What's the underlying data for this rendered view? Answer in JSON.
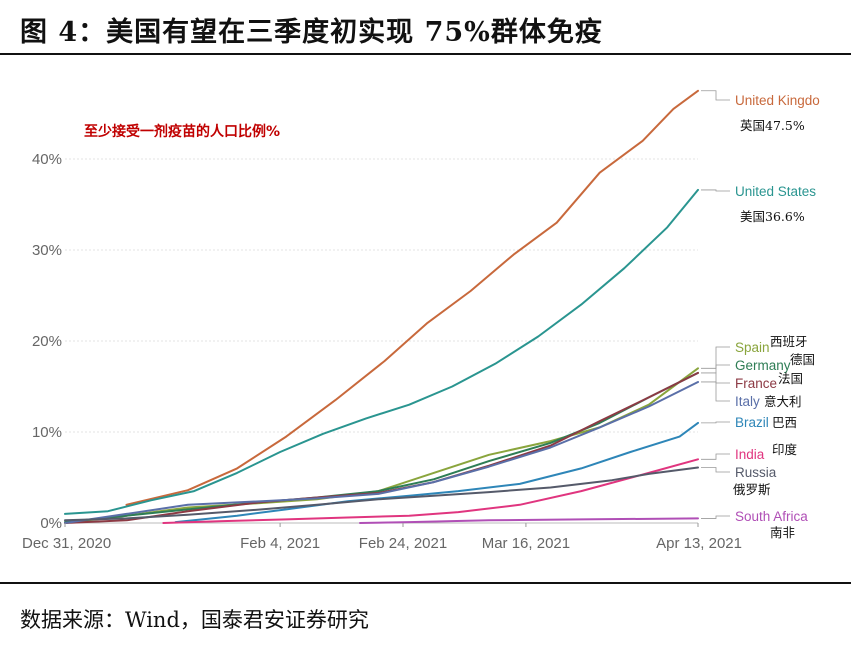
{
  "page": {
    "title": "图 4：美国有望在三季度初实现 75%群体免疫",
    "source": "数据来源：Wind，国泰君安证券研究"
  },
  "chart_data": {
    "type": "line",
    "annotation": "至少接受一剂疫苗的人口比例%",
    "ylim": [
      0,
      50
    ],
    "y_ticks": [
      0,
      10,
      20,
      30,
      40
    ],
    "y_tick_labels": [
      "0%",
      "10%",
      "20%",
      "30%",
      "40%"
    ],
    "x_range": [
      "2020-12-31",
      "2021-04-13"
    ],
    "x_ticks": [
      "2020-12-31",
      "2021-02-04",
      "2021-02-24",
      "2021-03-16",
      "2021-04-13"
    ],
    "x_tick_labels": [
      "Dec 31, 2020",
      "Feb 4, 2021",
      "Feb 24, 2021",
      "Mar 16, 2021",
      "Apr 13, 2021"
    ],
    "series": [
      {
        "name": "United Kingdom",
        "label_display": "United Kingdo",
        "cn": "英国47.5%",
        "color": "#c8693c",
        "points": [
          [
            "2021-01-10",
            2.0
          ],
          [
            "2021-01-20",
            3.6
          ],
          [
            "2021-01-28",
            6.0
          ],
          [
            "2021-02-05",
            9.5
          ],
          [
            "2021-02-13",
            13.5
          ],
          [
            "2021-02-21",
            17.8
          ],
          [
            "2021-02-28",
            22.0
          ],
          [
            "2021-03-07",
            25.5
          ],
          [
            "2021-03-14",
            29.5
          ],
          [
            "2021-03-21",
            33.0
          ],
          [
            "2021-03-28",
            38.5
          ],
          [
            "2021-04-04",
            42.0
          ],
          [
            "2021-04-09",
            45.5
          ],
          [
            "2021-04-13",
            47.5
          ]
        ]
      },
      {
        "name": "United States",
        "cn": "美国36.6%",
        "color": "#2a9590",
        "points": [
          [
            "2020-12-31",
            1.0
          ],
          [
            "2021-01-07",
            1.3
          ],
          [
            "2021-01-14",
            2.5
          ],
          [
            "2021-01-21",
            3.5
          ],
          [
            "2021-01-28",
            5.5
          ],
          [
            "2021-02-04",
            7.8
          ],
          [
            "2021-02-11",
            9.8
          ],
          [
            "2021-02-18",
            11.5
          ],
          [
            "2021-02-25",
            13.0
          ],
          [
            "2021-03-04",
            15.0
          ],
          [
            "2021-03-11",
            17.5
          ],
          [
            "2021-03-18",
            20.5
          ],
          [
            "2021-03-25",
            24.0
          ],
          [
            "2021-04-01",
            28.0
          ],
          [
            "2021-04-08",
            32.5
          ],
          [
            "2021-04-13",
            36.6
          ]
        ]
      },
      {
        "name": "Spain",
        "cn": "西班牙",
        "color": "#8aa53d",
        "points": [
          [
            "2020-12-31",
            0.0
          ],
          [
            "2021-01-10",
            0.8
          ],
          [
            "2021-01-20",
            1.7
          ],
          [
            "2021-02-01",
            2.2
          ],
          [
            "2021-02-10",
            2.6
          ],
          [
            "2021-02-20",
            3.5
          ],
          [
            "2021-03-01",
            5.5
          ],
          [
            "2021-03-10",
            7.5
          ],
          [
            "2021-03-20",
            9.0
          ],
          [
            "2021-03-28",
            10.5
          ],
          [
            "2021-04-05",
            13.0
          ],
          [
            "2021-04-13",
            17.0
          ]
        ]
      },
      {
        "name": "Germany",
        "cn": "德国",
        "color": "#2e7d55",
        "points": [
          [
            "2020-12-31",
            0.1
          ],
          [
            "2021-01-10",
            0.8
          ],
          [
            "2021-01-20",
            1.5
          ],
          [
            "2021-02-01",
            2.3
          ],
          [
            "2021-02-10",
            2.8
          ],
          [
            "2021-02-20",
            3.5
          ],
          [
            "2021-03-01",
            4.8
          ],
          [
            "2021-03-10",
            6.8
          ],
          [
            "2021-03-20",
            8.8
          ],
          [
            "2021-03-28",
            11.0
          ],
          [
            "2021-04-05",
            13.8
          ],
          [
            "2021-04-13",
            16.5
          ]
        ]
      },
      {
        "name": "France",
        "cn": "法国",
        "color": "#8c3a44",
        "points": [
          [
            "2020-12-31",
            0.0
          ],
          [
            "2021-01-10",
            0.3
          ],
          [
            "2021-01-20",
            1.3
          ],
          [
            "2021-02-01",
            2.3
          ],
          [
            "2021-02-10",
            2.8
          ],
          [
            "2021-02-20",
            3.3
          ],
          [
            "2021-03-01",
            4.5
          ],
          [
            "2021-03-10",
            6.3
          ],
          [
            "2021-03-20",
            8.5
          ],
          [
            "2021-03-28",
            11.2
          ],
          [
            "2021-04-05",
            13.8
          ],
          [
            "2021-04-13",
            16.5
          ]
        ]
      },
      {
        "name": "Italy",
        "cn": "意大利",
        "color": "#5a6fa8",
        "points": [
          [
            "2020-12-31",
            0.0
          ],
          [
            "2021-01-10",
            1.0
          ],
          [
            "2021-01-20",
            2.0
          ],
          [
            "2021-02-01",
            2.4
          ],
          [
            "2021-02-10",
            2.7
          ],
          [
            "2021-02-20",
            3.2
          ],
          [
            "2021-03-01",
            4.5
          ],
          [
            "2021-03-10",
            6.2
          ],
          [
            "2021-03-20",
            8.3
          ],
          [
            "2021-03-28",
            10.5
          ],
          [
            "2021-04-05",
            12.8
          ],
          [
            "2021-04-13",
            15.5
          ]
        ]
      },
      {
        "name": "Brazil",
        "cn": "巴西",
        "color": "#2e86b8",
        "points": [
          [
            "2021-01-18",
            0.1
          ],
          [
            "2021-01-28",
            0.8
          ],
          [
            "2021-02-05",
            1.5
          ],
          [
            "2021-02-15",
            2.4
          ],
          [
            "2021-02-25",
            3.0
          ],
          [
            "2021-03-05",
            3.5
          ],
          [
            "2021-03-15",
            4.3
          ],
          [
            "2021-03-25",
            6.0
          ],
          [
            "2021-04-02",
            7.8
          ],
          [
            "2021-04-10",
            9.5
          ],
          [
            "2021-04-13",
            11.0
          ]
        ]
      },
      {
        "name": "India",
        "cn": "印度",
        "color": "#e0357f",
        "points": [
          [
            "2021-01-16",
            0.0
          ],
          [
            "2021-01-25",
            0.2
          ],
          [
            "2021-02-05",
            0.4
          ],
          [
            "2021-02-15",
            0.6
          ],
          [
            "2021-02-25",
            0.8
          ],
          [
            "2021-03-05",
            1.2
          ],
          [
            "2021-03-15",
            2.0
          ],
          [
            "2021-03-25",
            3.5
          ],
          [
            "2021-04-05",
            5.5
          ],
          [
            "2021-04-13",
            7.0
          ]
        ]
      },
      {
        "name": "Russia",
        "cn": "俄罗斯",
        "color": "#555a6a",
        "points": [
          [
            "2020-12-31",
            0.3
          ],
          [
            "2021-01-10",
            0.5
          ],
          [
            "2021-01-20",
            0.9
          ],
          [
            "2021-02-01",
            1.5
          ],
          [
            "2021-02-10",
            2.0
          ],
          [
            "2021-02-20",
            2.6
          ],
          [
            "2021-03-01",
            3.0
          ],
          [
            "2021-03-10",
            3.4
          ],
          [
            "2021-03-20",
            3.9
          ],
          [
            "2021-03-30",
            4.7
          ],
          [
            "2021-04-05",
            5.4
          ],
          [
            "2021-04-13",
            6.1
          ]
        ]
      },
      {
        "name": "South Africa",
        "cn": "南非",
        "color": "#b04fb6",
        "points": [
          [
            "2021-02-17",
            0.0
          ],
          [
            "2021-02-25",
            0.1
          ],
          [
            "2021-03-10",
            0.3
          ],
          [
            "2021-03-25",
            0.4
          ],
          [
            "2021-04-13",
            0.5
          ]
        ]
      }
    ]
  }
}
